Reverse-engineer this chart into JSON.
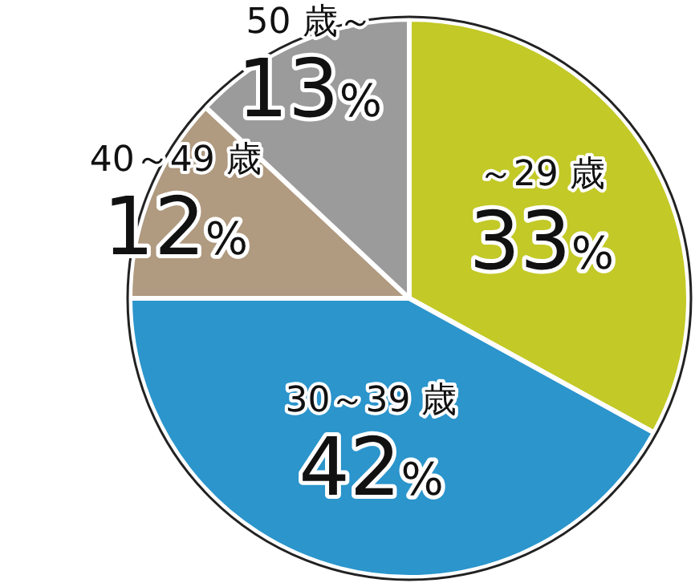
{
  "chart_data": {
    "type": "pie",
    "categories": [
      "～29 歳",
      "30～39 歳",
      "40～49 歳",
      "50 歳～"
    ],
    "values": [
      33,
      42,
      12,
      13
    ],
    "value_labels": [
      "33%",
      "42%",
      "12%",
      "13%"
    ],
    "colors": [
      "#c3c926",
      "#2b95cc",
      "#b09a80",
      "#9b9b9b"
    ]
  }
}
